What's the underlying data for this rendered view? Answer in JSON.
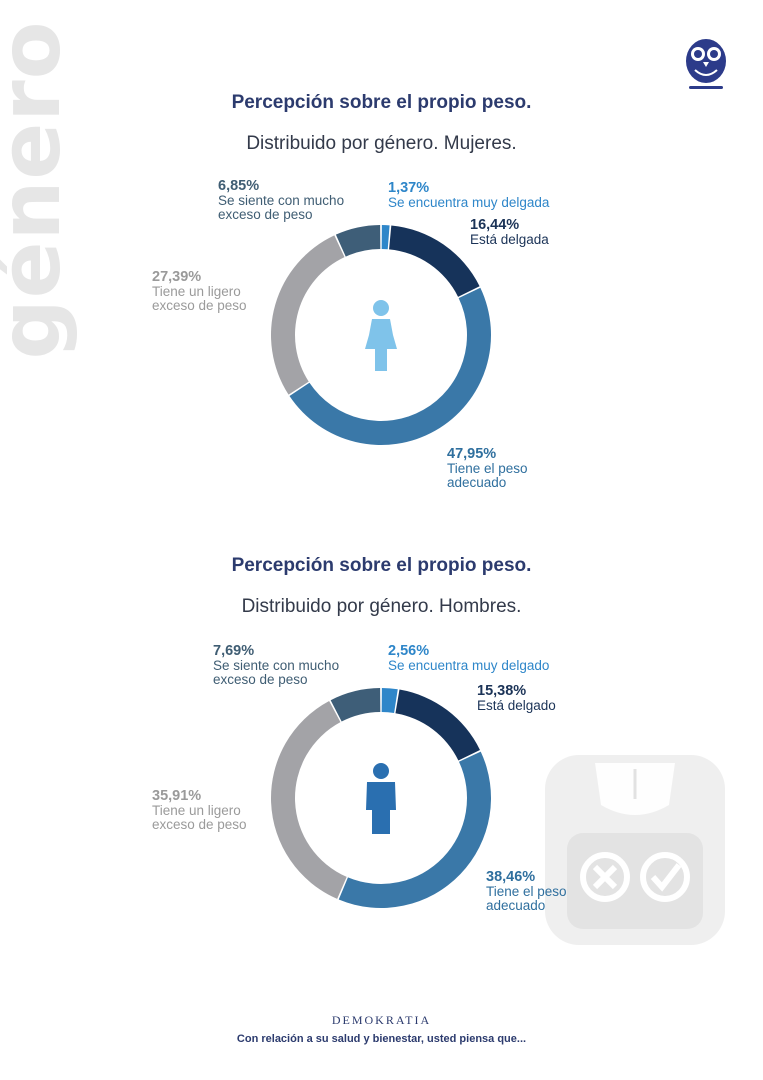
{
  "side_word": "género",
  "footer": {
    "brand": "DEMOKRATIA",
    "caption": "Con relación a su salud y bienestar, usted piensa que..."
  },
  "colors": {
    "muy_delgada": "#2e86c9",
    "delgada": "#16335a",
    "adecuado": "#3a78a8",
    "ligero_exceso": "#a3a3a7",
    "mucho_exceso": "#3e5e78",
    "women_icon": "#7fc3ea",
    "men_icon": "#2a6fb0",
    "title": "#2c3b6e"
  },
  "icons": {
    "logo": "owl-logo-icon",
    "women": "woman-icon",
    "men": "man-icon",
    "scale": "scale-icon"
  },
  "chart_data": [
    {
      "type": "pie",
      "title": "Percepción sobre el propio peso.",
      "subtitle": "Distribuido por género. Mujeres.",
      "categories": [
        "Se encuentra muy delgada",
        "Está delgada",
        "Tiene el peso adecuado",
        "Tiene un ligero exceso de peso",
        "Se siente con mucho exceso de peso"
      ],
      "values": [
        1.37,
        16.44,
        47.95,
        27.39,
        6.85
      ],
      "labels": {
        "muy_delgada": {
          "pct": "1,37%",
          "text": "Se encuentra muy delgada"
        },
        "delgada": {
          "pct": "16,44%",
          "text": "Está delgada"
        },
        "adecuado": {
          "pct": "47,95%",
          "line1": "Tiene el peso",
          "line2": "adecuado"
        },
        "ligero": {
          "pct": "27,39%",
          "line1": "Tiene un ligero",
          "line2": "exceso de peso"
        },
        "mucho": {
          "pct": "6,85%",
          "line1": "Se siente con mucho",
          "line2": "exceso de peso"
        }
      }
    },
    {
      "type": "pie",
      "title": "Percepción sobre el propio peso.",
      "subtitle": "Distribuido por género. Hombres.",
      "categories": [
        "Se encuentra muy delgado",
        "Está delgado",
        "Tiene el peso adecuado",
        "Tiene un ligero exceso de peso",
        "Se siente con mucho exceso de peso"
      ],
      "values": [
        2.56,
        15.38,
        38.46,
        35.91,
        7.69
      ],
      "labels": {
        "muy_delgada": {
          "pct": "2,56%",
          "text": "Se encuentra muy delgado"
        },
        "delgada": {
          "pct": "15,38%",
          "text": "Está delgado"
        },
        "adecuado": {
          "pct": "38,46%",
          "line1": "Tiene el peso",
          "line2": "adecuado"
        },
        "ligero": {
          "pct": "35,91%",
          "line1": "Tiene un ligero",
          "line2": "exceso de peso"
        },
        "mucho": {
          "pct": "7,69%",
          "line1": "Se siente con mucho",
          "line2": "exceso de peso"
        }
      }
    }
  ]
}
